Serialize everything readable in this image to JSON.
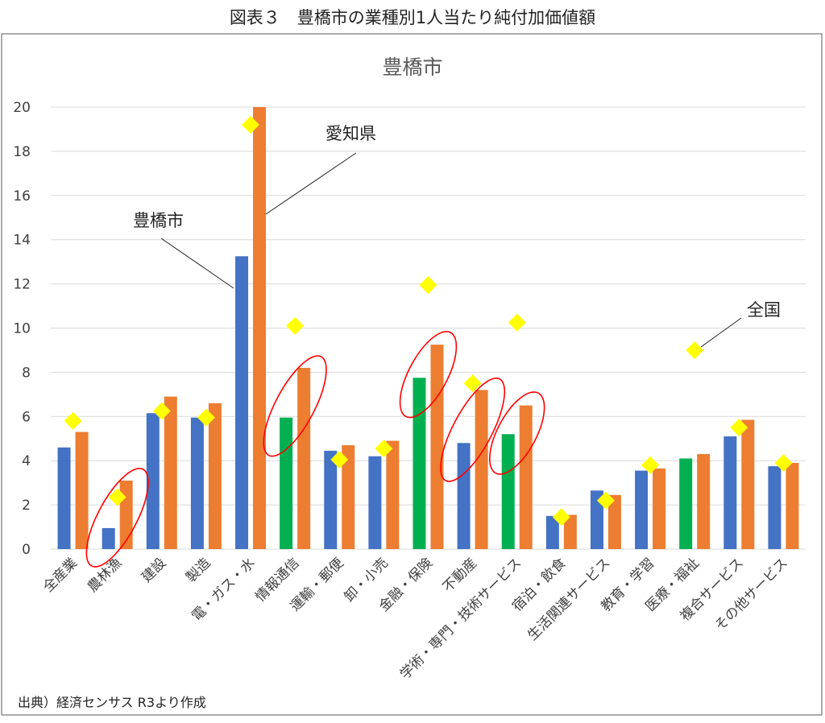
{
  "figure_title": "図表３　豊橋市の業種別1人当たり純付加価値額",
  "source_note": "出典）経済センサス R3より作成",
  "chart_data": {
    "type": "bar",
    "title": "豊橋市",
    "categories": [
      "全産業",
      "農林漁",
      "建設",
      "製造",
      "電・ガス・水",
      "情報通信",
      "運輸・郵便",
      "卸・小売",
      "金融・保険",
      "不動産",
      "学術・専門・技術サービス",
      "宿泊・飲食",
      "生活関連サービス",
      "教育・学習",
      "医療・福祉",
      "複合サービス",
      "その他サービス"
    ],
    "ylim": [
      0,
      20
    ],
    "yticks": [
      0,
      2,
      4,
      6,
      8,
      10,
      12,
      14,
      16,
      18,
      20
    ],
    "grid": true,
    "series": [
      {
        "name": "豊橋市",
        "kind": "bar",
        "color": "#4472C4",
        "values": [
          4.6,
          0.95,
          6.15,
          5.95,
          13.25,
          5.95,
          4.45,
          4.2,
          7.75,
          4.8,
          5.2,
          1.5,
          2.65,
          3.55,
          4.1,
          5.1,
          3.75
        ]
      },
      {
        "name": "愛知県",
        "kind": "bar",
        "color": "#ED7D31",
        "values": [
          5.3,
          3.1,
          6.9,
          6.6,
          20.0,
          8.2,
          4.7,
          4.9,
          9.25,
          7.2,
          6.5,
          1.55,
          2.45,
          3.65,
          4.3,
          5.85,
          3.9
        ]
      },
      {
        "name": "全国",
        "kind": "marker",
        "color": "#FFFF00",
        "values": [
          5.8,
          2.35,
          6.25,
          5.95,
          19.2,
          10.1,
          4.05,
          4.55,
          11.95,
          7.5,
          10.25,
          1.45,
          2.2,
          3.8,
          9.0,
          5.5,
          3.9
        ]
      }
    ],
    "highlight_color": "#00B050",
    "highlighted_categories": [
      "情報通信",
      "金融・保険",
      "学術・専門・技術サービス",
      "医療・福祉"
    ],
    "circled_categories": [
      "農林漁",
      "情報通信",
      "金融・保険",
      "不動産",
      "学術・専門・技術サービス"
    ],
    "annotations": [
      "豊橋市",
      "愛知県",
      "全国"
    ]
  }
}
